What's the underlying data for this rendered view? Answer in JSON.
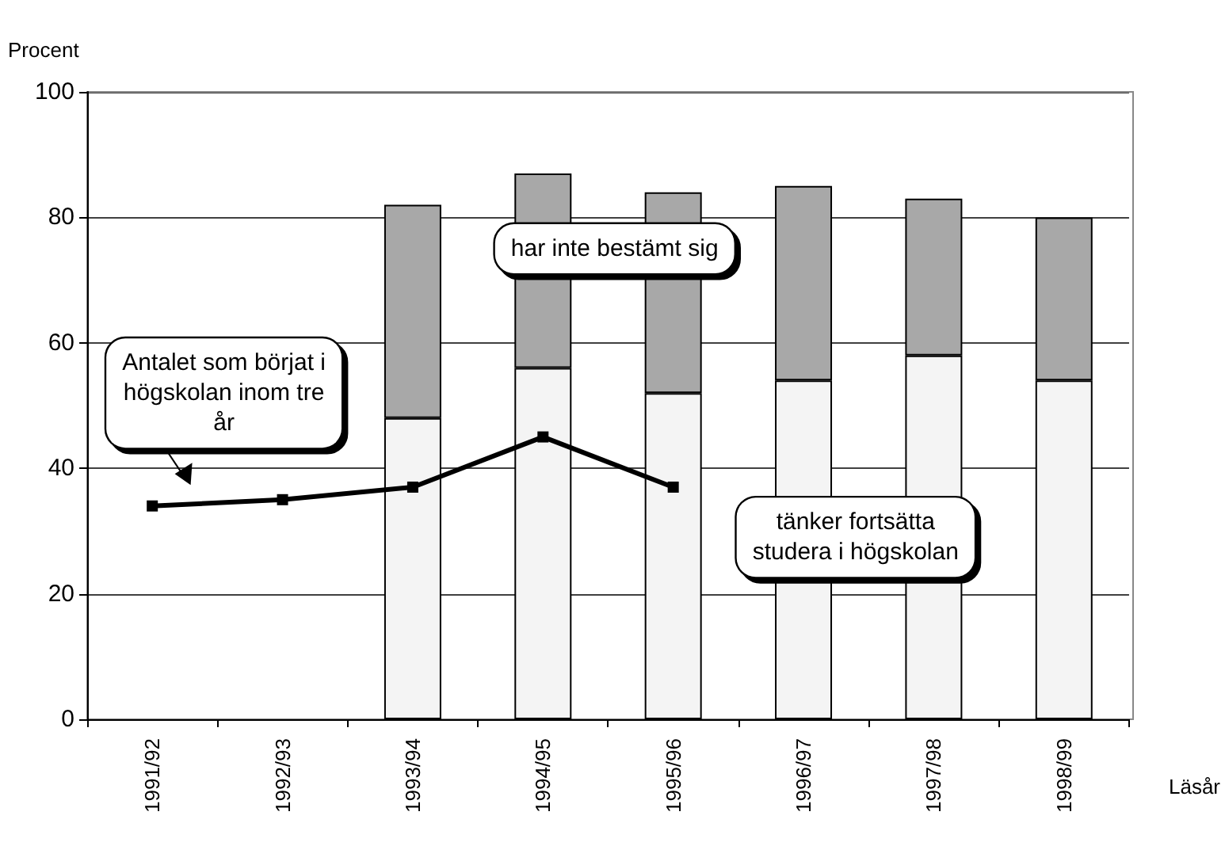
{
  "chart_data": {
    "type": "bar",
    "stacked": true,
    "ylabel": "Procent",
    "xlabel": "Läsår",
    "categories": [
      "1991/92",
      "1992/93",
      "1993/94",
      "1994/95",
      "1995/96",
      "1996/97",
      "1997/98",
      "1998/99"
    ],
    "series": [
      {
        "name": "tänker fortsätta\nstudera i högskolan",
        "color": "#f4f4f4",
        "values": [
          null,
          null,
          48,
          56,
          52,
          54,
          58,
          54
        ]
      },
      {
        "name": "har inte bestämt sig",
        "color": "#a8a8a8",
        "values": [
          null,
          null,
          34,
          31,
          32,
          31,
          25,
          26
        ]
      },
      {
        "name": "Antalet som börjat i\nhögskolan inom tre\når",
        "type": "line",
        "color": "#000000",
        "marker": "square",
        "line_style": "solid",
        "values": [
          34,
          35,
          37,
          45,
          37,
          null,
          null,
          null
        ]
      }
    ],
    "ylim": [
      0,
      100
    ],
    "yticks": [
      0,
      20,
      40,
      60,
      80,
      100
    ],
    "grid": "y"
  }
}
